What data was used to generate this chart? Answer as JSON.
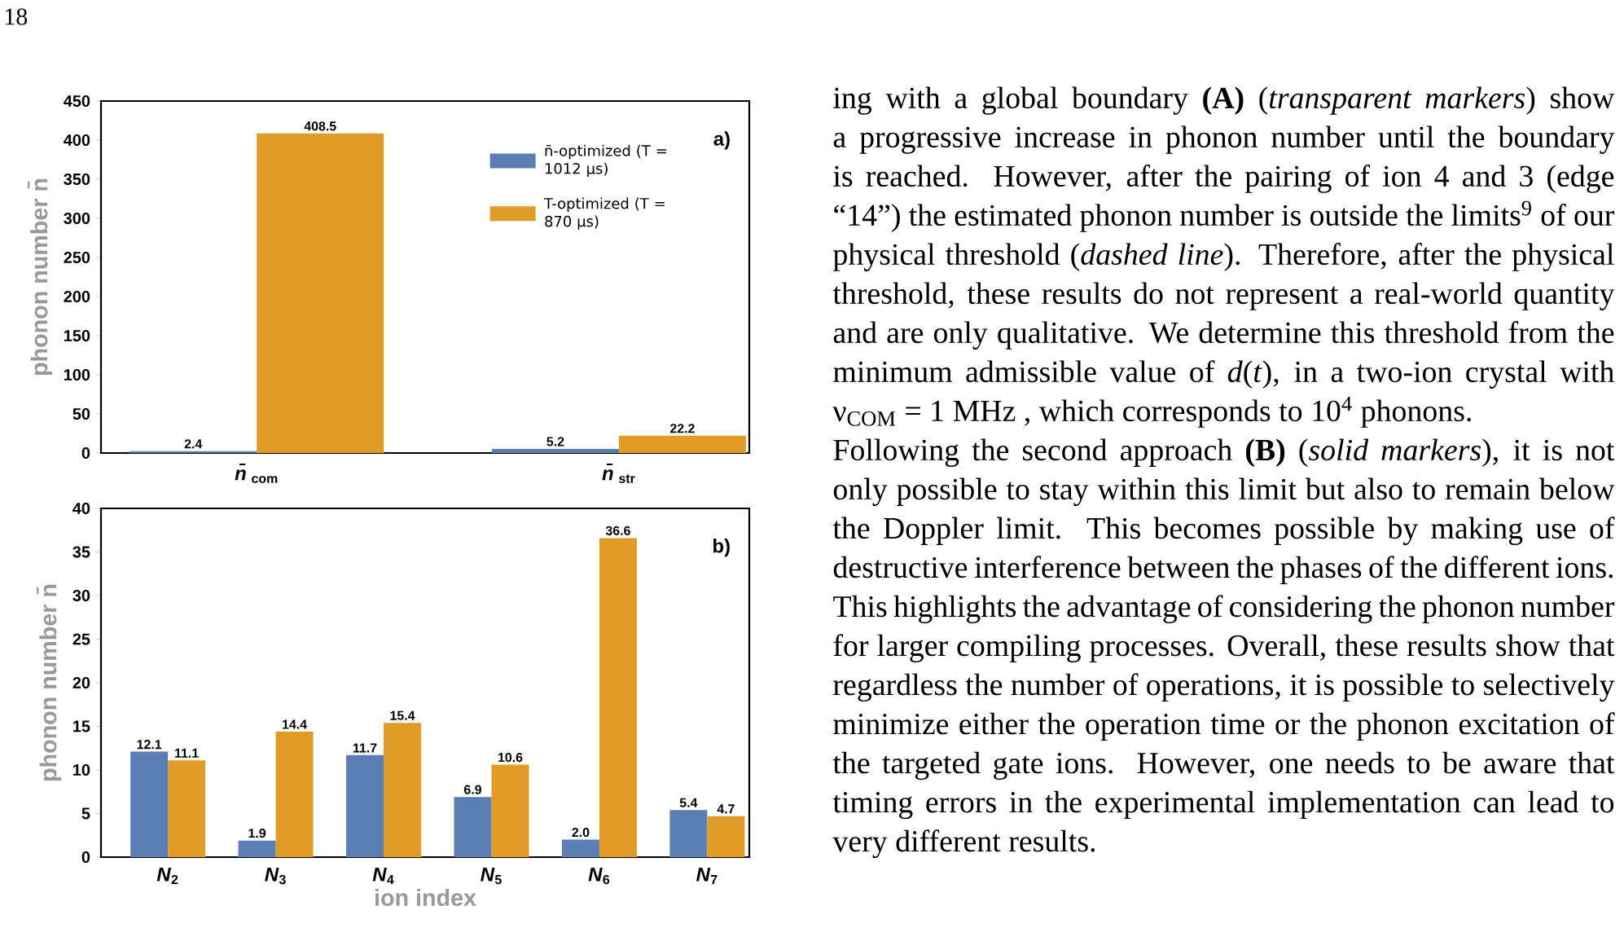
{
  "chart_data": [
    {
      "type": "bar",
      "categories": [
        "*n̄*$_{com}$",
        "*n̄*$_{str}$"
      ],
      "series": [
        {
          "name": "n̄-optimized (T = 1012 μs)",
          "color": "#5b7fb5",
          "values": [
            2.4,
            5.2
          ],
          "value_labels": [
            "2.4",
            "5.2"
          ]
        },
        {
          "name": "T-optimized (T = 870 μs)",
          "color": "#e09c26",
          "values": [
            408.5,
            22.2
          ],
          "value_labels": [
            "408.5",
            "22.2"
          ]
        }
      ],
      "ylabel": "phonon number n̄",
      "ylim": [
        0,
        450
      ],
      "yticks": [
        0,
        50,
        100,
        150,
        200,
        250,
        300,
        350,
        400,
        450
      ],
      "legend": "top right",
      "annotations": [
        "a)"
      ]
    },
    {
      "type": "bar",
      "categories": [
        "*N*$_{2}$",
        "*N*$_{3}$",
        "*N*$_{4}$",
        "*N*$_{5}$",
        "*N*$_{6}$",
        "*N*$_{7}$"
      ],
      "series": [
        {
          "color": "#5b7fb5",
          "values": [
            12.1,
            1.9,
            11.7,
            6.9,
            2.0,
            5.4
          ],
          "value_labels": [
            "12.1",
            "1.9",
            "11.7",
            "6.9",
            "2.0",
            "5.4"
          ]
        },
        {
          "color": "#e09c26",
          "values": [
            11.1,
            14.4,
            15.4,
            10.6,
            36.6,
            4.7
          ],
          "value_labels": [
            "11.1",
            "14.4",
            "15.4",
            "10.6",
            "36.6",
            "4.7"
          ]
        }
      ],
      "xlabel": "ion index",
      "ylabel": "phonon number n̄",
      "ylim": [
        0,
        40
      ],
      "yticks": [
        0,
        5,
        10,
        15,
        20,
        25,
        30,
        35,
        40
      ],
      "annotations": [
        "b)"
      ]
    },
    {
      "type": "other",
      "annotations": [
        "18",
        "ing with a global boundary **(A)** (*transparent markers*) show a progressive increase in phonon number until the boundary is reached. However, after the pairing of ion 4 and 3 (edge “14”) the estimated phonon number is outside the limits$^{9}$ of our physical threshold (*dashed line*). Therefore, after the physical threshold, these results do not represent a real-world quantity and are only qualitative. We determine this threshold from the minimum admissible value of *d*(*t*), in a two-ion crystal with ν$_{COM}$ = 1 MHz , which corresponds to 10$^{4}$ phonons.",
        "Following the second approach **(B)** (*solid markers*), it is not only possible to stay within this limit but also to remain below the Doppler limit. This becomes possible by making use of destructive interference between the phases of the different ions. This highlights the advantage of considering the phonon number for larger compiling processes. Overall, these results show that regardless the number of operations, it is possible to selectively minimize either the operation time or the phonon excitation of the targeted gate ions. However, one needs to be aware that timing errors in the experimental implementation can lead to very different results."
      ]
    }
  ]
}
